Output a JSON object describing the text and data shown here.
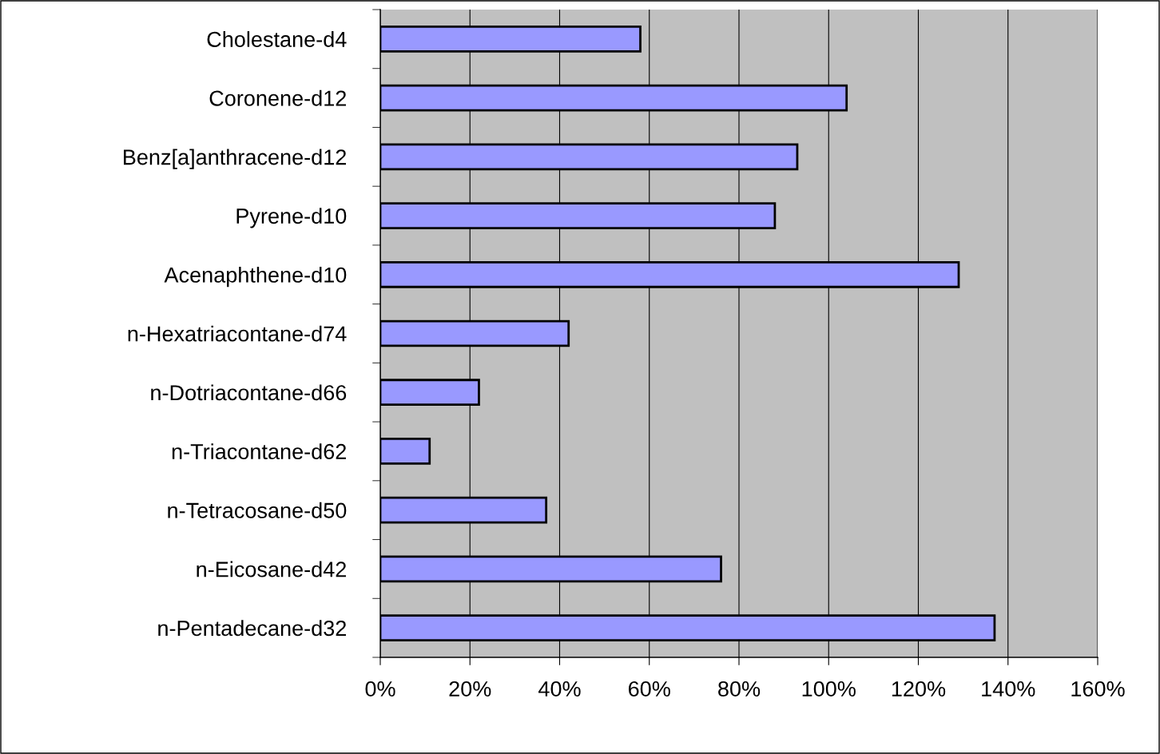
{
  "chart_data": {
    "type": "bar",
    "orientation": "horizontal",
    "categories": [
      "Cholestane-d4",
      "Coronene-d12",
      "Benz[a]anthracene-d12",
      "Pyrene-d10",
      "Acenaphthene-d10",
      "n-Hexatriacontane-d74",
      "n-Dotriacontane-d66",
      "n-Triacontane-d62",
      "n-Tetracosane-d50",
      "n-Eicosane-d42",
      "n-Pentadecane-d32"
    ],
    "values": [
      58,
      104,
      93,
      88,
      129,
      42,
      22,
      11,
      37,
      76,
      137
    ],
    "color": "#9999ff",
    "xlim": [
      0,
      160
    ],
    "xticks": [
      {
        "value": 0,
        "label": "0%"
      },
      {
        "value": 20,
        "label": "20%"
      },
      {
        "value": 40,
        "label": "40%"
      },
      {
        "value": 60,
        "label": "60%"
      },
      {
        "value": 80,
        "label": "80%"
      },
      {
        "value": 100,
        "label": "100%"
      },
      {
        "value": 120,
        "label": "120%"
      },
      {
        "value": 140,
        "label": "140%"
      },
      {
        "value": 160,
        "label": "160%"
      }
    ],
    "grid": "x",
    "legend": false
  }
}
